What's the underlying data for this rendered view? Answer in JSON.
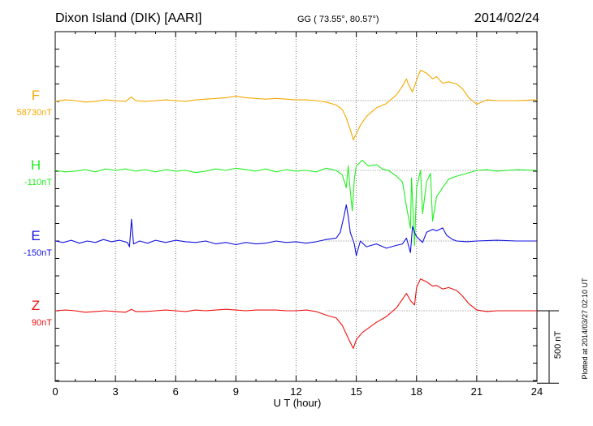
{
  "header": {
    "station": "Dixon Island (DIK)  [AARI]",
    "coords": "GG ( 73.55°,  80.57°)",
    "date": "2014/02/24"
  },
  "footer": {
    "plotted": "Plotted at 2014/03/27 02:10 UT"
  },
  "chart_data": {
    "type": "line",
    "title": "Dixon Island (DIK)  [AARI]",
    "xlabel": "U T (hour)",
    "xlim": [
      0,
      24
    ],
    "xticks": [
      0,
      3,
      6,
      9,
      12,
      15,
      18,
      21,
      24
    ],
    "xtick_labels": [
      "0",
      "3",
      "6",
      "9",
      "12",
      "15",
      "18",
      "21",
      "24"
    ],
    "grid": true,
    "scale_bar": {
      "label": "500 nT",
      "value": 500
    },
    "series": [
      {
        "name": "F",
        "baseline_label": "58730nT",
        "color": "#f5a800",
        "points": [
          [
            0,
            -5
          ],
          [
            0.5,
            5
          ],
          [
            1,
            0
          ],
          [
            1.5,
            -10
          ],
          [
            2,
            -5
          ],
          [
            2.5,
            5
          ],
          [
            3,
            0
          ],
          [
            3.5,
            -5
          ],
          [
            3.8,
            25
          ],
          [
            4,
            0
          ],
          [
            4.5,
            -5
          ],
          [
            5,
            0
          ],
          [
            5.5,
            5
          ],
          [
            6,
            0
          ],
          [
            6.5,
            -5
          ],
          [
            7,
            5
          ],
          [
            7.5,
            10
          ],
          [
            8,
            15
          ],
          [
            8.5,
            20
          ],
          [
            9,
            30
          ],
          [
            9.5,
            20
          ],
          [
            10,
            15
          ],
          [
            10.5,
            10
          ],
          [
            11,
            15
          ],
          [
            11.5,
            10
          ],
          [
            12,
            5
          ],
          [
            12.5,
            5
          ],
          [
            13,
            0
          ],
          [
            13.5,
            -10
          ],
          [
            14,
            -30
          ],
          [
            14.3,
            -60
          ],
          [
            14.5,
            -120
          ],
          [
            14.7,
            -200
          ],
          [
            14.85,
            -270
          ],
          [
            15,
            -230
          ],
          [
            15.2,
            -170
          ],
          [
            15.5,
            -110
          ],
          [
            16,
            -50
          ],
          [
            16.5,
            -20
          ],
          [
            17,
            40
          ],
          [
            17.3,
            100
          ],
          [
            17.5,
            150
          ],
          [
            17.6,
            110
          ],
          [
            17.8,
            60
          ],
          [
            18,
            140
          ],
          [
            18.2,
            210
          ],
          [
            18.5,
            190
          ],
          [
            18.8,
            150
          ],
          [
            19,
            165
          ],
          [
            19.3,
            120
          ],
          [
            19.6,
            130
          ],
          [
            20,
            115
          ],
          [
            20.3,
            80
          ],
          [
            20.6,
            20
          ],
          [
            21,
            -25
          ],
          [
            21.5,
            5
          ],
          [
            22,
            0
          ],
          [
            23,
            0
          ],
          [
            24,
            5
          ]
        ]
      },
      {
        "name": "H",
        "baseline_label": "-110nT",
        "color": "#22ee22",
        "points": [
          [
            0,
            0
          ],
          [
            0.5,
            -10
          ],
          [
            1,
            -5
          ],
          [
            1.5,
            5
          ],
          [
            2,
            -10
          ],
          [
            2.5,
            10
          ],
          [
            3,
            0
          ],
          [
            3.5,
            10
          ],
          [
            4,
            -5
          ],
          [
            4.5,
            5
          ],
          [
            5,
            -10
          ],
          [
            5.5,
            5
          ],
          [
            6,
            -5
          ],
          [
            6.5,
            0
          ],
          [
            7,
            -15
          ],
          [
            7.5,
            -5
          ],
          [
            8,
            10
          ],
          [
            8.5,
            0
          ],
          [
            9,
            15
          ],
          [
            9.5,
            5
          ],
          [
            10,
            -5
          ],
          [
            10.5,
            10
          ],
          [
            11,
            -10
          ],
          [
            11.5,
            5
          ],
          [
            12,
            -5
          ],
          [
            12.5,
            0
          ],
          [
            13,
            -10
          ],
          [
            13.5,
            15
          ],
          [
            14,
            0
          ],
          [
            14.3,
            -30
          ],
          [
            14.5,
            -120
          ],
          [
            14.6,
            30
          ],
          [
            14.7,
            -140
          ],
          [
            14.8,
            -280
          ],
          [
            14.9,
            -60
          ],
          [
            15,
            30
          ],
          [
            15.3,
            70
          ],
          [
            15.6,
            30
          ],
          [
            16,
            40
          ],
          [
            16.3,
            10
          ],
          [
            16.6,
            0
          ],
          [
            17,
            -40
          ],
          [
            17.3,
            -80
          ],
          [
            17.5,
            -250
          ],
          [
            17.7,
            -400
          ],
          [
            17.75,
            -50
          ],
          [
            17.9,
            -520
          ],
          [
            18,
            -120
          ],
          [
            18.2,
            0
          ],
          [
            18.3,
            -300
          ],
          [
            18.5,
            -80
          ],
          [
            18.7,
            -20
          ],
          [
            18.8,
            -350
          ],
          [
            19,
            -180
          ],
          [
            19.3,
            -120
          ],
          [
            19.6,
            -60
          ],
          [
            20,
            -40
          ],
          [
            20.5,
            -20
          ],
          [
            21,
            0
          ],
          [
            21.5,
            5
          ],
          [
            22,
            -5
          ],
          [
            23,
            5
          ],
          [
            24,
            0
          ]
        ]
      },
      {
        "name": "E",
        "baseline_label": "-150nT",
        "color": "#1111dd",
        "points": [
          [
            0,
            0
          ],
          [
            0.4,
            -10
          ],
          [
            0.8,
            5
          ],
          [
            1.2,
            -15
          ],
          [
            1.6,
            0
          ],
          [
            2,
            -10
          ],
          [
            2.4,
            10
          ],
          [
            2.8,
            -5
          ],
          [
            3.2,
            5
          ],
          [
            3.6,
            -10
          ],
          [
            3.7,
            -40
          ],
          [
            3.8,
            150
          ],
          [
            3.9,
            -20
          ],
          [
            4.2,
            0
          ],
          [
            4.6,
            -15
          ],
          [
            5,
            5
          ],
          [
            5.5,
            -10
          ],
          [
            6,
            5
          ],
          [
            6.5,
            -5
          ],
          [
            7,
            -10
          ],
          [
            7.5,
            0
          ],
          [
            8,
            -20
          ],
          [
            8.5,
            -10
          ],
          [
            9,
            -25
          ],
          [
            9.5,
            -10
          ],
          [
            10,
            -20
          ],
          [
            10.5,
            -15
          ],
          [
            11,
            0
          ],
          [
            11.5,
            -10
          ],
          [
            12,
            -5
          ],
          [
            12.5,
            -15
          ],
          [
            13,
            -5
          ],
          [
            13.5,
            10
          ],
          [
            14,
            20
          ],
          [
            14.2,
            60
          ],
          [
            14.4,
            180
          ],
          [
            14.5,
            250
          ],
          [
            14.6,
            170
          ],
          [
            14.7,
            60
          ],
          [
            14.9,
            -20
          ],
          [
            15,
            -100
          ],
          [
            15.2,
            0
          ],
          [
            15.5,
            -40
          ],
          [
            16,
            -20
          ],
          [
            16.5,
            -50
          ],
          [
            17,
            -30
          ],
          [
            17.3,
            -20
          ],
          [
            17.5,
            20
          ],
          [
            17.7,
            -80
          ],
          [
            17.8,
            100
          ],
          [
            17.9,
            60
          ],
          [
            18,
            30
          ],
          [
            18.3,
            -10
          ],
          [
            18.5,
            60
          ],
          [
            18.8,
            80
          ],
          [
            19,
            70
          ],
          [
            19.3,
            90
          ],
          [
            19.5,
            40
          ],
          [
            19.8,
            10
          ],
          [
            20,
            0
          ],
          [
            20.5,
            -5
          ],
          [
            21,
            0
          ],
          [
            22,
            5
          ],
          [
            23,
            0
          ],
          [
            24,
            0
          ]
        ]
      },
      {
        "name": "Z",
        "baseline_label": "90nT",
        "color": "#ee1111",
        "points": [
          [
            0,
            0
          ],
          [
            0.5,
            5
          ],
          [
            1,
            0
          ],
          [
            1.5,
            -10
          ],
          [
            2,
            -5
          ],
          [
            2.5,
            0
          ],
          [
            3,
            -5
          ],
          [
            3.5,
            -10
          ],
          [
            3.8,
            10
          ],
          [
            4,
            -5
          ],
          [
            4.5,
            -5
          ],
          [
            5,
            0
          ],
          [
            5.5,
            5
          ],
          [
            6,
            0
          ],
          [
            6.5,
            -5
          ],
          [
            7,
            5
          ],
          [
            7.5,
            0
          ],
          [
            8,
            5
          ],
          [
            8.5,
            10
          ],
          [
            9,
            5
          ],
          [
            9.5,
            0
          ],
          [
            10,
            5
          ],
          [
            10.5,
            5
          ],
          [
            11,
            5
          ],
          [
            11.5,
            0
          ],
          [
            12,
            0
          ],
          [
            12.5,
            5
          ],
          [
            13,
            -5
          ],
          [
            13.5,
            -30
          ],
          [
            14,
            -50
          ],
          [
            14.3,
            -100
          ],
          [
            14.6,
            -190
          ],
          [
            14.85,
            -260
          ],
          [
            15,
            -200
          ],
          [
            15.3,
            -150
          ],
          [
            15.6,
            -120
          ],
          [
            16,
            -80
          ],
          [
            16.5,
            -40
          ],
          [
            17,
            20
          ],
          [
            17.3,
            80
          ],
          [
            17.5,
            120
          ],
          [
            17.7,
            70
          ],
          [
            17.9,
            40
          ],
          [
            18,
            160
          ],
          [
            18.2,
            220
          ],
          [
            18.5,
            200
          ],
          [
            18.8,
            170
          ],
          [
            19,
            175
          ],
          [
            19.3,
            150
          ],
          [
            19.6,
            160
          ],
          [
            20,
            140
          ],
          [
            20.3,
            100
          ],
          [
            20.6,
            50
          ],
          [
            21,
            5
          ],
          [
            21.5,
            -5
          ],
          [
            22,
            0
          ],
          [
            23,
            0
          ],
          [
            24,
            0
          ]
        ]
      }
    ]
  }
}
